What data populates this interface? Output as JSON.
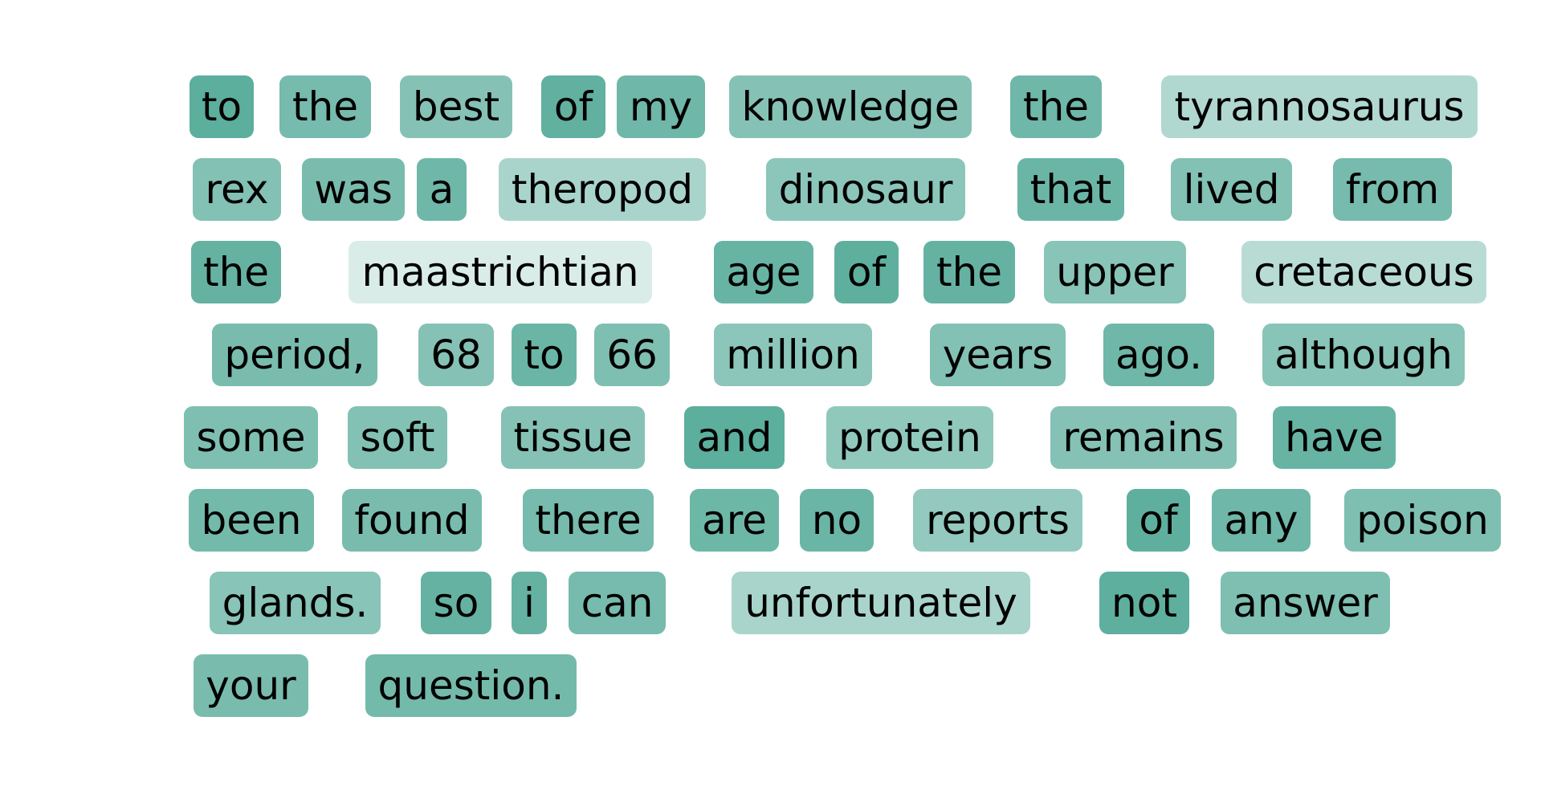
{
  "tokens": [
    {
      "text": "to",
      "weight": 0.98
    },
    {
      "text": "the",
      "weight": 0.8
    },
    {
      "text": "best",
      "weight": 0.7
    },
    {
      "text": "of",
      "weight": 0.95
    },
    {
      "text": "my",
      "weight": 0.85
    },
    {
      "text": "knowledge",
      "weight": 0.7
    },
    {
      "text": "the",
      "weight": 0.85
    },
    {
      "text": "tyrannosaurus",
      "weight": 0.4
    },
    {
      "text": "rex",
      "weight": 0.72
    },
    {
      "text": "was",
      "weight": 0.78
    },
    {
      "text": "a",
      "weight": 0.85
    },
    {
      "text": "theropod",
      "weight": 0.45
    },
    {
      "text": "dinosaur",
      "weight": 0.65
    },
    {
      "text": "that",
      "weight": 0.88
    },
    {
      "text": "lived",
      "weight": 0.72
    },
    {
      "text": "from",
      "weight": 0.8
    },
    {
      "text": "the",
      "weight": 0.92
    },
    {
      "text": "maastrichtian",
      "weight": 0.12
    },
    {
      "text": "age",
      "weight": 0.9
    },
    {
      "text": "of",
      "weight": 0.96
    },
    {
      "text": "the",
      "weight": 0.92
    },
    {
      "text": "upper",
      "weight": 0.68
    },
    {
      "text": "cretaceous",
      "weight": 0.35
    },
    {
      "text": "period,",
      "weight": 0.78
    },
    {
      "text": "68",
      "weight": 0.7
    },
    {
      "text": "to",
      "weight": 0.88
    },
    {
      "text": "66",
      "weight": 0.75
    },
    {
      "text": "million",
      "weight": 0.65
    },
    {
      "text": "years",
      "weight": 0.72
    },
    {
      "text": "ago.",
      "weight": 0.85
    },
    {
      "text": "although",
      "weight": 0.68
    },
    {
      "text": "some",
      "weight": 0.75
    },
    {
      "text": "soft",
      "weight": 0.72
    },
    {
      "text": "tissue",
      "weight": 0.7
    },
    {
      "text": "and",
      "weight": 0.98
    },
    {
      "text": "protein",
      "weight": 0.62
    },
    {
      "text": "remains",
      "weight": 0.7
    },
    {
      "text": "have",
      "weight": 0.9
    },
    {
      "text": "been",
      "weight": 0.82
    },
    {
      "text": "found",
      "weight": 0.78
    },
    {
      "text": "there",
      "weight": 0.8
    },
    {
      "text": "are",
      "weight": 0.86
    },
    {
      "text": "no",
      "weight": 0.88
    },
    {
      "text": "reports",
      "weight": 0.6
    },
    {
      "text": "of",
      "weight": 0.96
    },
    {
      "text": "any",
      "weight": 0.85
    },
    {
      "text": "poison",
      "weight": 0.75
    },
    {
      "text": "glands.",
      "weight": 0.68
    },
    {
      "text": "so",
      "weight": 0.92
    },
    {
      "text": "i",
      "weight": 0.92
    },
    {
      "text": "can",
      "weight": 0.8
    },
    {
      "text": "unfortunately",
      "weight": 0.45
    },
    {
      "text": "not",
      "weight": 0.96
    },
    {
      "text": "answer",
      "weight": 0.75
    },
    {
      "text": "your",
      "weight": 0.78
    },
    {
      "text": "question.",
      "weight": 0.82
    }
  ],
  "colors": {
    "highlight_rgb": "84,170,152",
    "text": "#000000",
    "background": "#ffffff"
  }
}
